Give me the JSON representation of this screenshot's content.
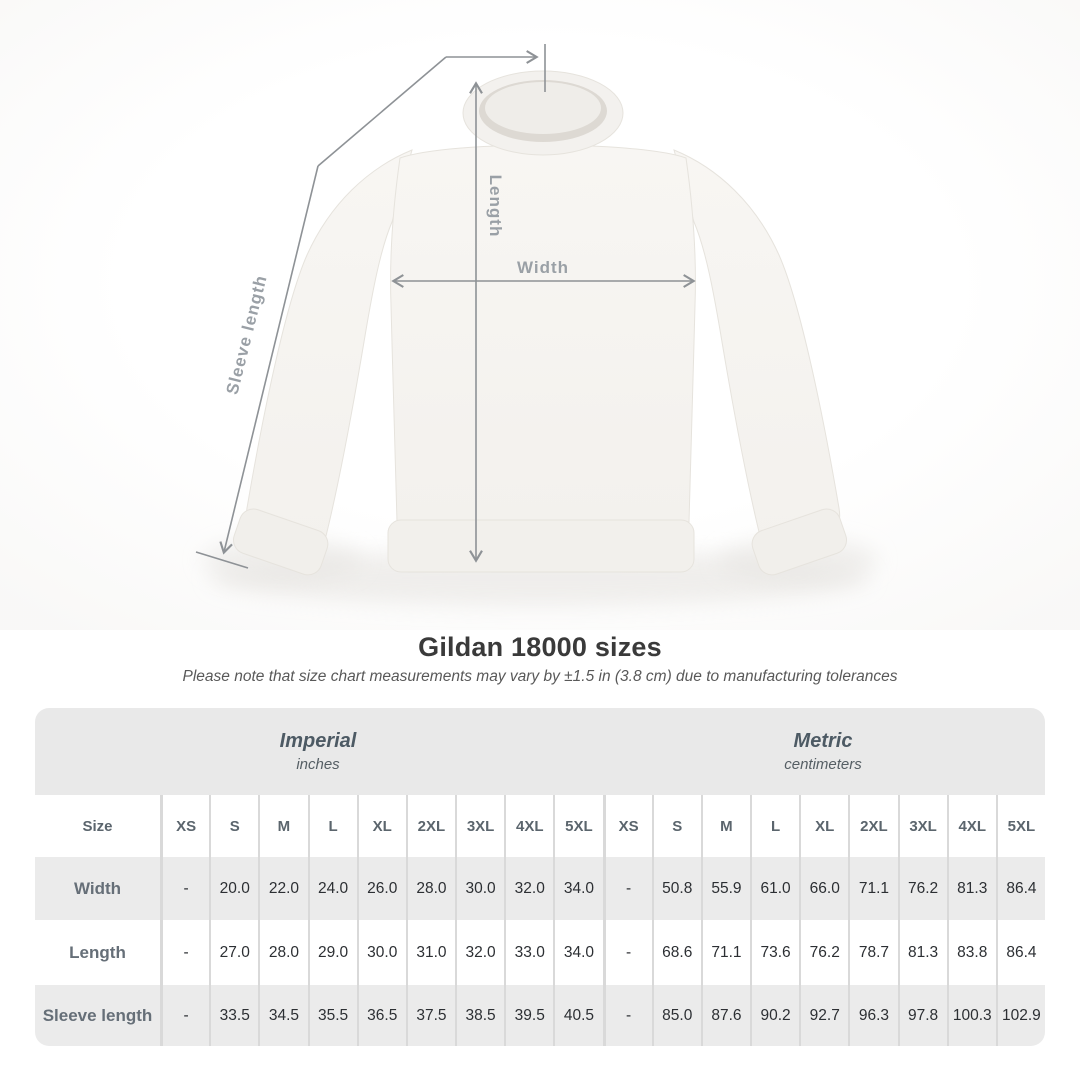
{
  "title": "Gildan 18000 sizes",
  "note": "Please note that size chart measurements may vary by ±1.5 in (3.8 cm) due to manufacturing tolerances",
  "diagram": {
    "length_label": "Length",
    "width_label": "Width",
    "sleeve_label": "Sleeve length"
  },
  "chart_data": {
    "type": "table",
    "title": "Gildan 18000 sizes",
    "size_column_header": "Size",
    "sections": [
      {
        "label": "Imperial",
        "units": "inches"
      },
      {
        "label": "Metric",
        "units": "centimeters"
      }
    ],
    "sizes": [
      "XS",
      "S",
      "M",
      "L",
      "XL",
      "2XL",
      "3XL",
      "4XL",
      "5XL"
    ],
    "rows": [
      {
        "label": "Width",
        "imperial": [
          "-",
          "20.0",
          "22.0",
          "24.0",
          "26.0",
          "28.0",
          "30.0",
          "32.0",
          "34.0"
        ],
        "metric": [
          "-",
          "50.8",
          "55.9",
          "61.0",
          "66.0",
          "71.1",
          "76.2",
          "81.3",
          "86.4"
        ]
      },
      {
        "label": "Length",
        "imperial": [
          "-",
          "27.0",
          "28.0",
          "29.0",
          "30.0",
          "31.0",
          "32.0",
          "33.0",
          "34.0"
        ],
        "metric": [
          "-",
          "68.6",
          "71.1",
          "73.6",
          "76.2",
          "78.7",
          "81.3",
          "83.8",
          "86.4"
        ]
      },
      {
        "label": "Sleeve length",
        "imperial": [
          "-",
          "33.5",
          "34.5",
          "35.5",
          "36.5",
          "37.5",
          "38.5",
          "39.5",
          "40.5"
        ],
        "metric": [
          "-",
          "85.0",
          "87.6",
          "90.2",
          "92.7",
          "96.3",
          "97.8",
          "100.3",
          "102.9"
        ]
      }
    ]
  },
  "colors": {
    "measure_line": "#8e9296",
    "diagram_label": "#9aa0a6",
    "table_header_band": "#e9e9e9",
    "row_alt": "#ebebeb",
    "value_text": "#2c2f33",
    "header_text": "#5b656d",
    "garment": "#f6f4f1"
  }
}
